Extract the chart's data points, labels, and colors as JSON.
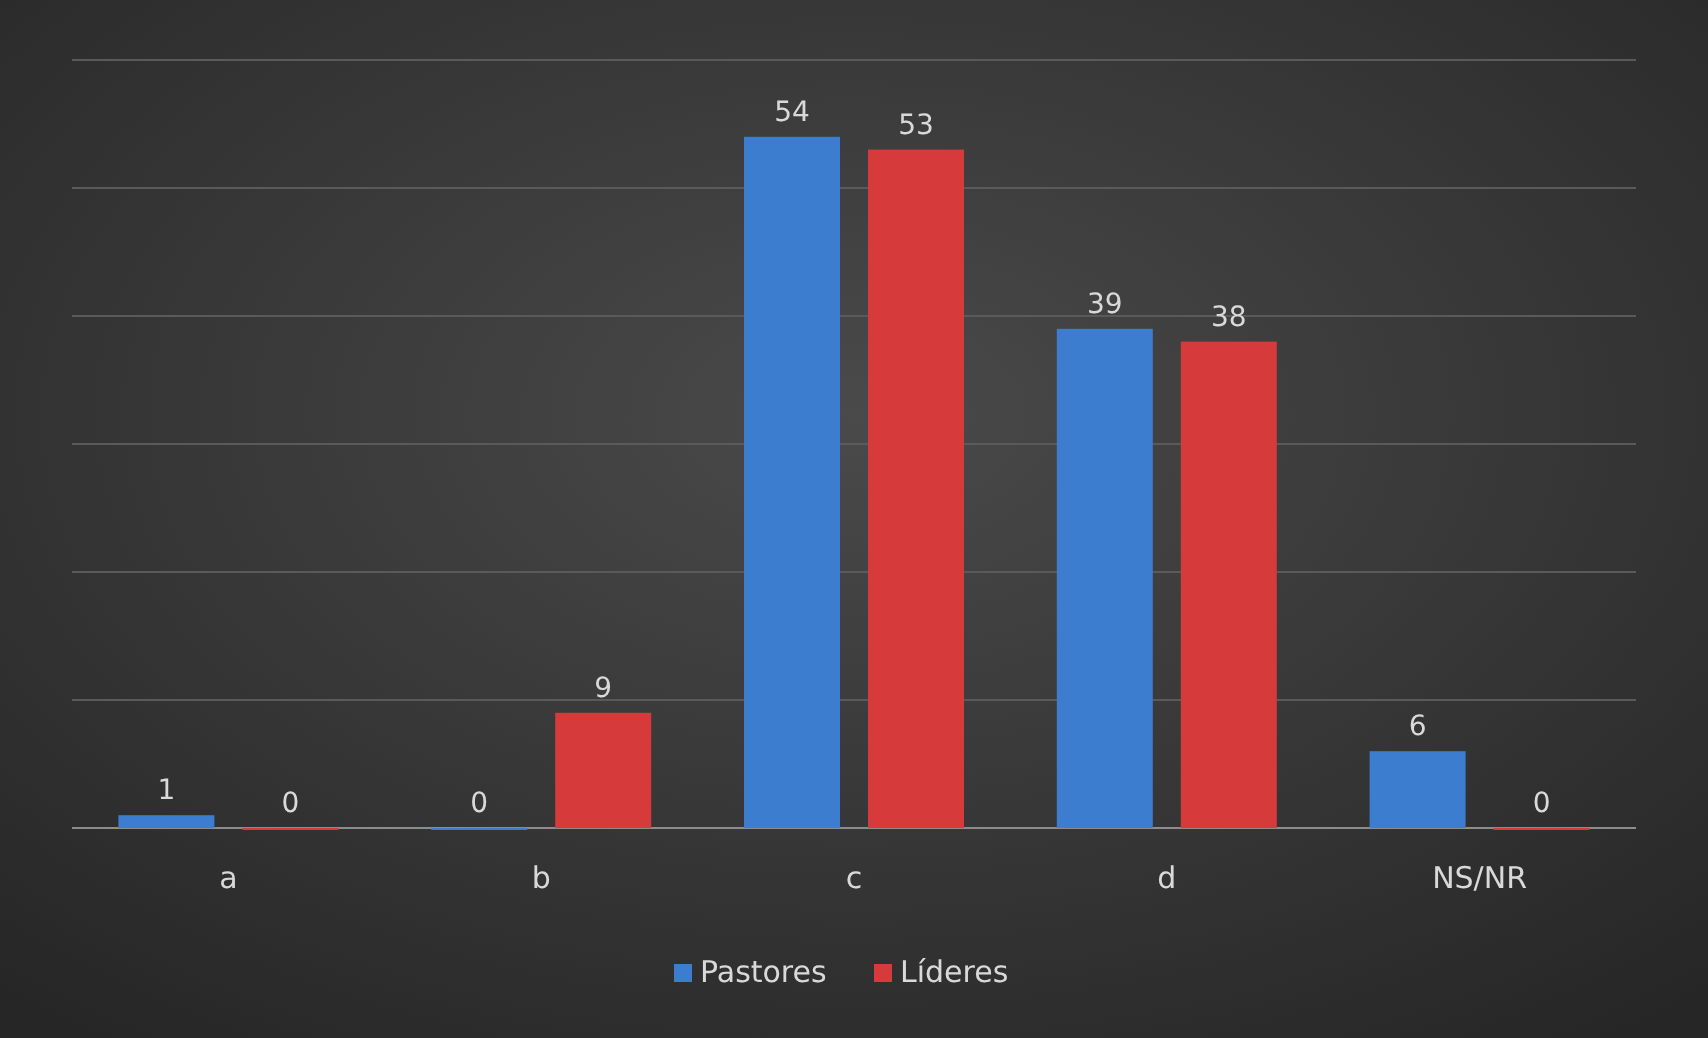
{
  "chart_data": {
    "type": "bar",
    "categories": [
      "a",
      "b",
      "c",
      "d",
      "NS/NR"
    ],
    "series": [
      {
        "name": "Pastores",
        "color": "#3d7dd0",
        "values": [
          1,
          0,
          54,
          39,
          6
        ]
      },
      {
        "name": "Líderes",
        "color": "#d63a3a",
        "values": [
          0,
          9,
          53,
          38,
          0
        ]
      }
    ],
    "ylim": [
      0,
      60
    ],
    "yticks": [
      0,
      10,
      20,
      30,
      40,
      50,
      60
    ],
    "tick_labels": "x",
    "grid": "y",
    "legend": "bottom",
    "data_labels": true
  }
}
